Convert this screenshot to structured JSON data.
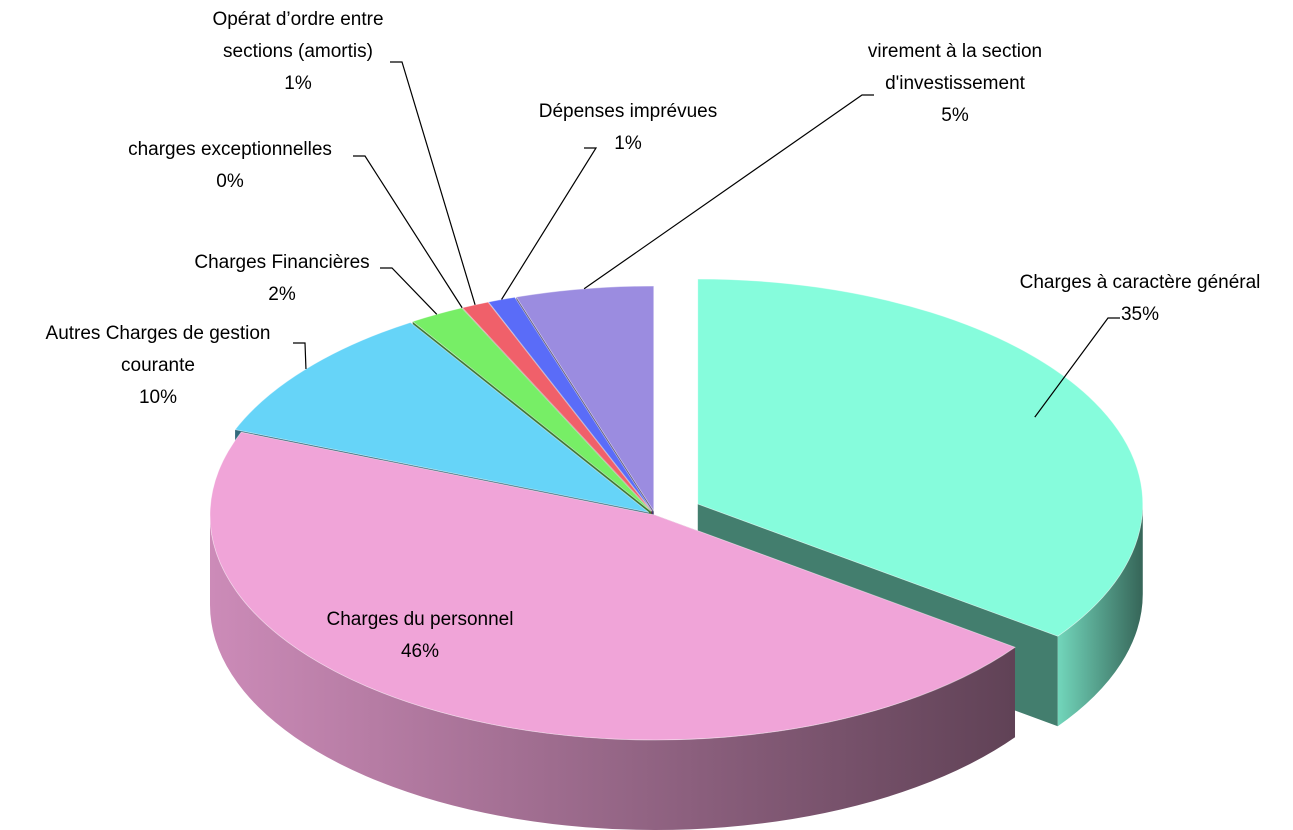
{
  "chart_data": {
    "type": "pie",
    "categories": [
      "Charges à caractère général",
      "Charges du personnel",
      "Autres Charges de gestion courante",
      "Charges Financières",
      "charges exceptionnelles",
      "Opérat d’ordre entre sections (amortis)",
      "Dépenses imprévues",
      "virement à la section d'investissement"
    ],
    "values": [
      35,
      46,
      10,
      2,
      0,
      1,
      1,
      5
    ],
    "value_labels": [
      "35%",
      "46%",
      "10%",
      "2%",
      "0%",
      "1%",
      "1%",
      "5%"
    ],
    "colors": [
      "#86fcdc",
      "#f0a4d8",
      "#66d4f8",
      "#77ee66",
      "#c0c0c0",
      "#f0606a",
      "#5a6cf8",
      "#9b8ce0"
    ]
  }
}
